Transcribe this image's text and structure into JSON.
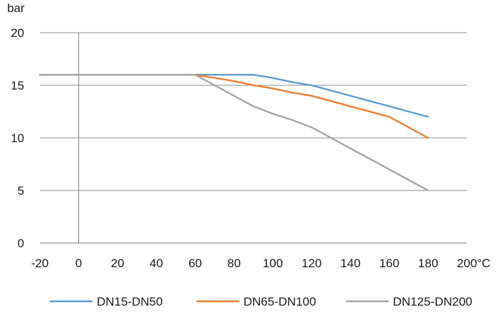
{
  "chart_data": {
    "type": "line",
    "title": "",
    "ylabel": "bar",
    "xlabel": "°C",
    "xlim": [
      -20,
      200
    ],
    "ylim": [
      0,
      20
    ],
    "x_ticks": [
      -20,
      0,
      20,
      40,
      60,
      80,
      100,
      120,
      140,
      160,
      180,
      200
    ],
    "y_ticks": [
      0,
      5,
      10,
      15,
      20
    ],
    "grid": "horizontal",
    "legend_position": "bottom",
    "series": [
      {
        "name": "DN15-DN50",
        "color": "#5b9bd5",
        "points": [
          [
            -20,
            16
          ],
          [
            90,
            16
          ],
          [
            100,
            15.7
          ],
          [
            110,
            15.3
          ],
          [
            120,
            15
          ],
          [
            180,
            12
          ]
        ]
      },
      {
        "name": "DN65-DN100",
        "color": "#ed7d31",
        "points": [
          [
            -20,
            16
          ],
          [
            60,
            16
          ],
          [
            80,
            15.4
          ],
          [
            90,
            15
          ],
          [
            100,
            14.7
          ],
          [
            110,
            14.3
          ],
          [
            120,
            14
          ],
          [
            160,
            12
          ],
          [
            180,
            10
          ]
        ]
      },
      {
        "name": "DN125-DN200",
        "color": "#a5a5a5",
        "points": [
          [
            -20,
            16
          ],
          [
            60,
            16
          ],
          [
            90,
            13
          ],
          [
            100,
            12.3
          ],
          [
            110,
            11.7
          ],
          [
            120,
            11
          ],
          [
            180,
            5
          ]
        ]
      }
    ]
  }
}
